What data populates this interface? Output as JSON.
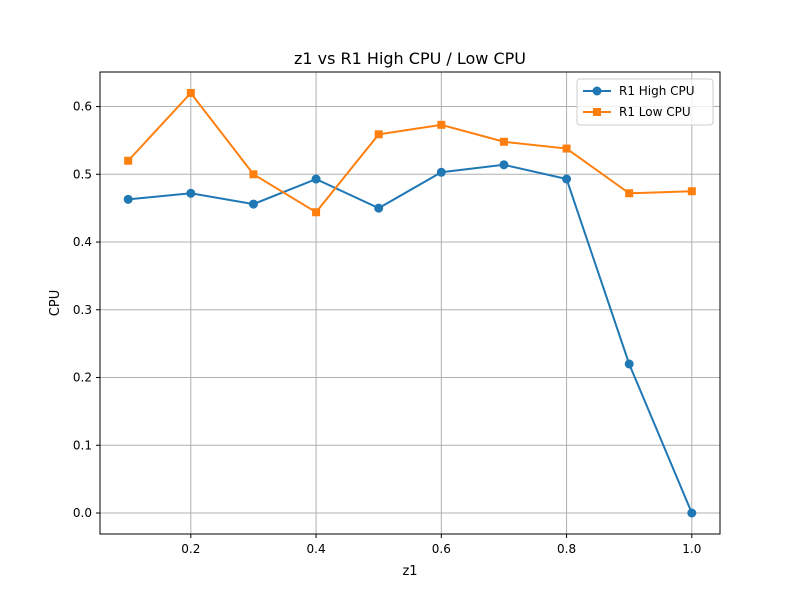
{
  "chart_data": {
    "type": "line",
    "title": "z1 vs R1 High CPU / Low CPU",
    "xlabel": "z1",
    "ylabel": "CPU",
    "xlim": [
      0.055,
      1.045
    ],
    "ylim": [
      -0.031,
      0.651
    ],
    "xticks": [
      0.2,
      0.4,
      0.6,
      0.8,
      1.0
    ],
    "xtick_labels": [
      "0.2",
      "0.4",
      "0.6",
      "0.8",
      "1.0"
    ],
    "yticks": [
      0.0,
      0.1,
      0.2,
      0.3,
      0.4,
      0.5,
      0.6
    ],
    "ytick_labels": [
      "0.0",
      "0.1",
      "0.2",
      "0.3",
      "0.4",
      "0.5",
      "0.6"
    ],
    "grid": true,
    "legend_position": "top-right",
    "x": [
      0.1,
      0.2,
      0.3,
      0.4,
      0.5,
      0.6,
      0.7,
      0.8,
      0.9,
      1.0
    ],
    "series": [
      {
        "name": "R1 High CPU",
        "color": "#1f77b4",
        "marker": "circle",
        "values": [
          0.463,
          0.472,
          0.456,
          0.493,
          0.45,
          0.503,
          0.514,
          0.493,
          0.22,
          0.0
        ]
      },
      {
        "name": "R1 Low CPU",
        "color": "#ff7f0e",
        "marker": "square",
        "values": [
          0.52,
          0.62,
          0.5,
          0.444,
          0.559,
          0.573,
          0.548,
          0.538,
          0.472,
          0.475
        ]
      }
    ]
  }
}
